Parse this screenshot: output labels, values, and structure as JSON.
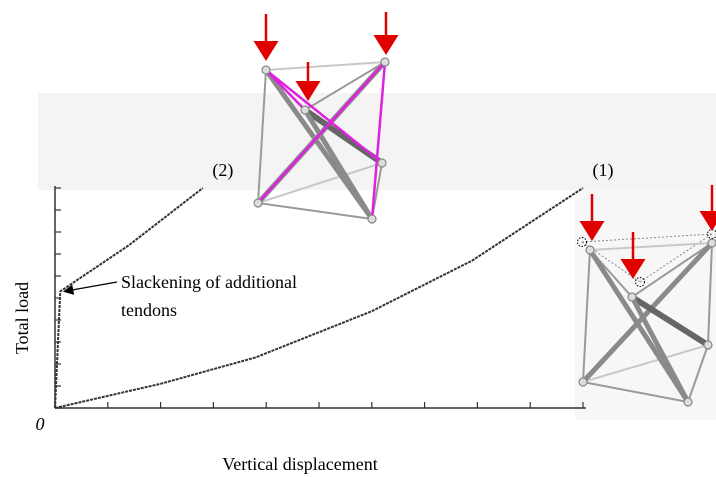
{
  "chart_data": {
    "type": "line",
    "x_label": "Vertical displacement",
    "y_label": "Total load",
    "origin_label": "0",
    "xlim": [
      0,
      10
    ],
    "ylim": [
      0,
      10
    ],
    "xticks": [
      0,
      1,
      2,
      3,
      4,
      5,
      6,
      7,
      8,
      9,
      10
    ],
    "yticks": [
      0,
      1,
      2,
      3,
      4,
      5,
      6,
      7,
      8,
      9,
      10
    ],
    "series": [
      {
        "name": "(1)",
        "color": "#333333",
        "x": [
          0,
          2,
          3.8,
          6,
          7.9,
          10
        ],
        "values": [
          0,
          1.1,
          2.3,
          4.4,
          6.7,
          10
        ]
      },
      {
        "name": "(2)",
        "color": "#333333",
        "x": [
          0,
          0.1,
          1.4,
          2.8
        ],
        "values": [
          0,
          5.3,
          7.4,
          10
        ]
      }
    ],
    "annotation": {
      "lines": [
        "Slackening of additional",
        "tendons"
      ]
    }
  }
}
